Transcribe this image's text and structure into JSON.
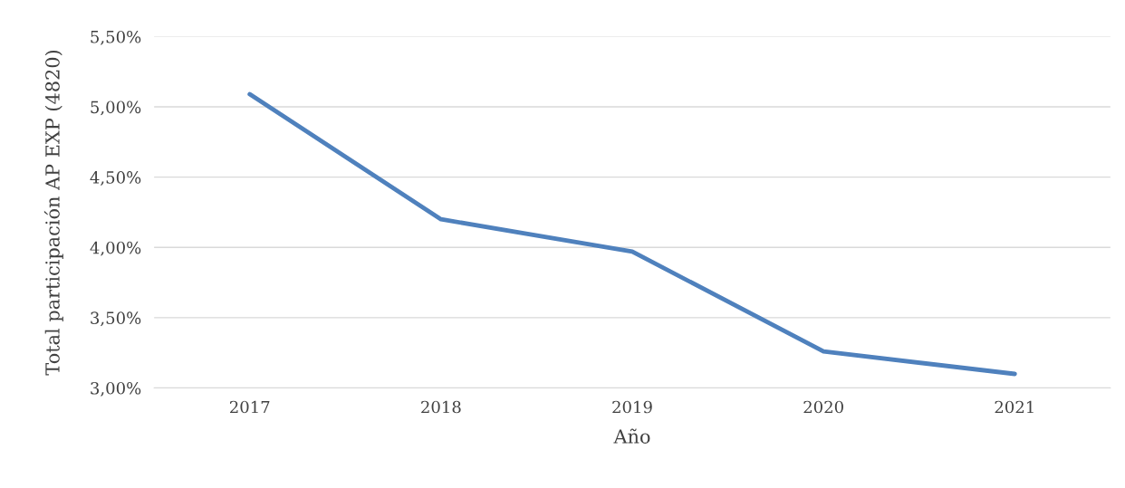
{
  "chart_data": {
    "type": "line",
    "xlabel": "Año",
    "ylabel": "Total participación AP EXP (4820)",
    "categories": [
      "2017",
      "2018",
      "2019",
      "2020",
      "2021"
    ],
    "series": [
      {
        "color": "#4f81bd",
        "values": [
          5.09,
          4.2,
          3.97,
          3.26,
          3.1
        ]
      }
    ],
    "ylim": [
      3.0,
      5.5
    ],
    "yticks": [
      {
        "value": 3.0,
        "label": "3,00%"
      },
      {
        "value": 3.5,
        "label": "3,50%"
      },
      {
        "value": 4.0,
        "label": "4,00%"
      },
      {
        "value": 4.5,
        "label": "4,50%"
      },
      {
        "value": 5.0,
        "label": "5,00%"
      },
      {
        "value": 5.5,
        "label": "5,50%"
      }
    ],
    "grid": "y",
    "marker": "none",
    "line_style": "solid"
  }
}
